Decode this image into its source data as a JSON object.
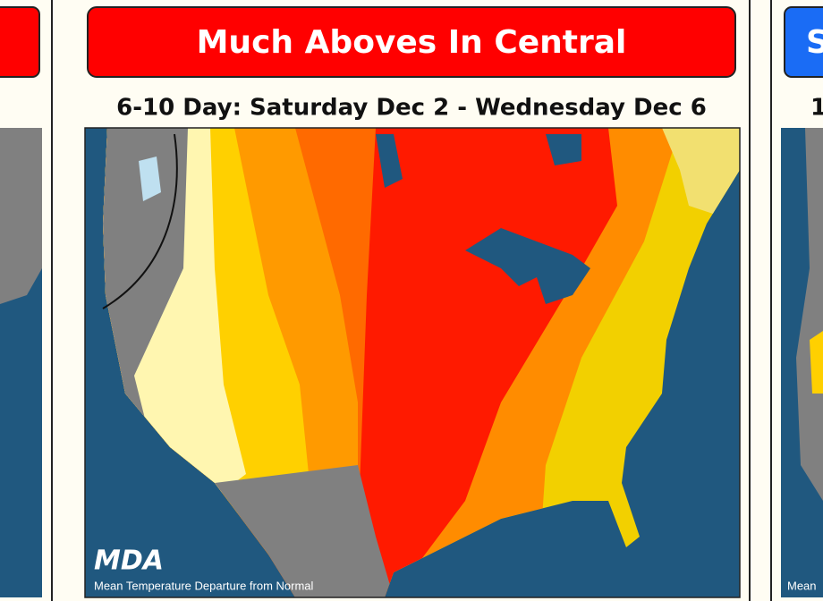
{
  "panels": [
    {
      "title": "Much Aboves In Central",
      "subtitle": "6-10 Day: Saturday Dec 2 - Wednesday Dec 6",
      "logo": "MDA",
      "map_caption": "Mean Temperature Departure from Normal"
    },
    {
      "title": "S",
      "subtitle": "1",
      "map_caption": "Mean"
    }
  ]
}
